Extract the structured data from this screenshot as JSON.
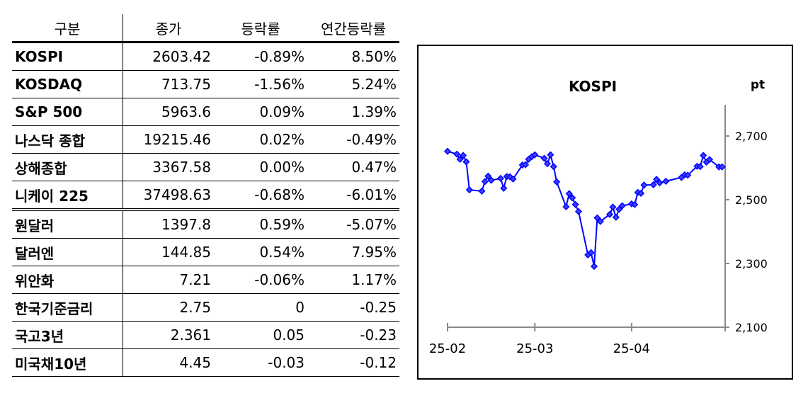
{
  "table": {
    "headers": [
      "구분",
      "종가",
      "등락률",
      "연간등락률"
    ],
    "rows": [
      [
        "KOSPI",
        "2603.42",
        "-0.89%",
        "8.50%"
      ],
      [
        "KOSDAQ",
        "713.75",
        "-1.56%",
        "5.24%"
      ],
      [
        "S&P 500",
        "5963.6",
        "0.09%",
        "1.39%"
      ],
      [
        "나스닥 종합",
        "19215.46",
        "0.02%",
        "-0.49%"
      ],
      [
        "상해종합",
        "3367.58",
        "0.00%",
        "0.47%"
      ],
      [
        "니케이 225",
        "37498.63",
        "-0.68%",
        "-6.01%"
      ],
      [
        "원달러",
        "1397.8",
        "0.59%",
        "-5.07%"
      ],
      [
        "달러엔",
        "144.85",
        "0.54%",
        "7.95%"
      ],
      [
        "위안화",
        "7.21",
        "-0.06%",
        "1.17%"
      ],
      [
        "한국기준금리",
        "2.75",
        "0",
        "-0.25"
      ],
      [
        "국고3년",
        "2.361",
        "0.05",
        "-0.23"
      ],
      [
        "미국채10년",
        "4.45",
        "-0.03",
        "-0.12"
      ]
    ]
  },
  "chart_data": {
    "type": "line",
    "title": "KOSPI",
    "ylabel": "pt",
    "ylim": [
      2100,
      2800
    ],
    "yticks": [
      "2,100",
      "2,300",
      "2,500",
      "2,700"
    ],
    "ytick_values": [
      2100,
      2300,
      2500,
      2700
    ],
    "xticks": [
      "25-02",
      "25-03",
      "25-04"
    ],
    "xtick_days": [
      0,
      28,
      59
    ],
    "xlim_days": [
      0,
      89
    ],
    "series_color": "#0000ff",
    "days": [
      0,
      3,
      4,
      5,
      6,
      7,
      11,
      12,
      13,
      14,
      17,
      18,
      19,
      20,
      21,
      24,
      25,
      26,
      27,
      28,
      31,
      32,
      33,
      34,
      35,
      38,
      39,
      40,
      41,
      42,
      45,
      46,
      47,
      48,
      49,
      52,
      53,
      54,
      55,
      56,
      59,
      60,
      61,
      62,
      63,
      66,
      67,
      68,
      70,
      75,
      76,
      77,
      80,
      81,
      82,
      83,
      84,
      87,
      88
    ],
    "values": [
      2652,
      2643,
      2627,
      2639,
      2619,
      2531,
      2527,
      2557,
      2574,
      2561,
      2567,
      2536,
      2573,
      2572,
      2565,
      2609,
      2610,
      2627,
      2635,
      2641,
      2630,
      2613,
      2641,
      2604,
      2556,
      2478,
      2519,
      2506,
      2485,
      2463,
      2327,
      2334,
      2291,
      2443,
      2432,
      2454,
      2477,
      2445,
      2470,
      2481,
      2487,
      2485,
      2523,
      2520,
      2546,
      2547,
      2564,
      2553,
      2558,
      2570,
      2578,
      2577,
      2605,
      2604,
      2639,
      2618,
      2626,
      2603,
      2603
    ]
  }
}
